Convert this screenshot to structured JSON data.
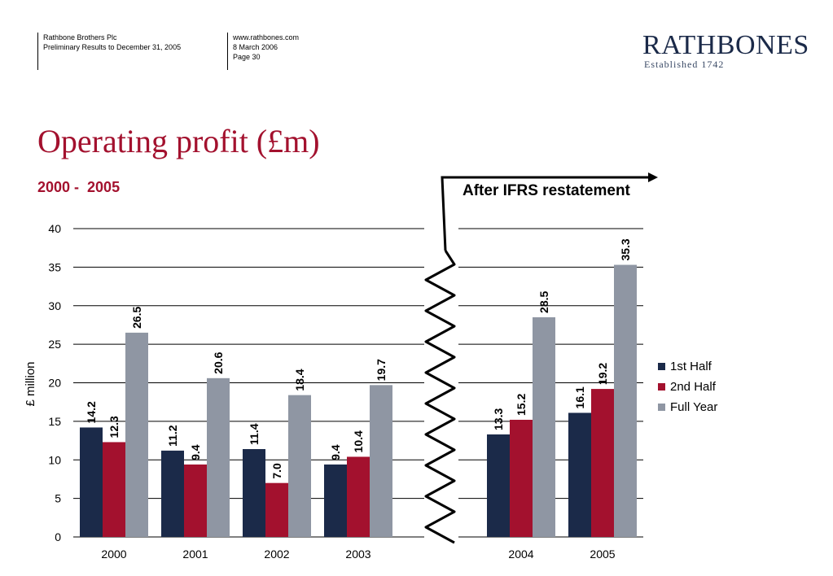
{
  "header": {
    "company": "Rathbone Brothers Plc",
    "document": "Preliminary Results to December 31, 2005",
    "website": "www.rathbones.com",
    "date": "8 March 2006",
    "page": "Page 30",
    "logo_name": "RATHBONES",
    "logo_sub": "Established 1742"
  },
  "slide": {
    "title": "Operating profit (£m)",
    "subtitle": "2000 -  2005",
    "annotation": "After IFRS restatement"
  },
  "colors": {
    "first_half": "#1b2a49",
    "second_half": "#a3112e",
    "full_year": "#8f96a3",
    "title": "#a3112e"
  },
  "chart_data": {
    "type": "bar",
    "ylabel": "£ million",
    "ylim": [
      0,
      40
    ],
    "yticks": [
      0,
      5,
      10,
      15,
      20,
      25,
      30,
      35,
      40
    ],
    "categories": [
      "2000",
      "2001",
      "2002",
      "2003",
      "2004",
      "2005"
    ],
    "series": [
      {
        "name": "1st Half",
        "values": [
          14.2,
          11.2,
          11.4,
          9.4,
          13.3,
          16.1
        ]
      },
      {
        "name": "2nd Half",
        "values": [
          12.3,
          9.4,
          7.0,
          10.4,
          15.2,
          19.2
        ]
      },
      {
        "name": "Full Year",
        "values": [
          26.5,
          20.6,
          18.4,
          19.7,
          28.5,
          35.3
        ]
      }
    ],
    "value_labels": [
      [
        "14.2",
        "11.2",
        "11.4",
        "9.4",
        "13.3",
        "16.1"
      ],
      [
        "12.3",
        "9.4",
        "7.0",
        "10.4",
        "15.2",
        "19.2"
      ],
      [
        "26.5",
        "20.6",
        "18.4",
        "19.7",
        "28.5",
        "35.3"
      ]
    ],
    "grid": true,
    "legend": "right",
    "axis_break_after": "2003"
  }
}
